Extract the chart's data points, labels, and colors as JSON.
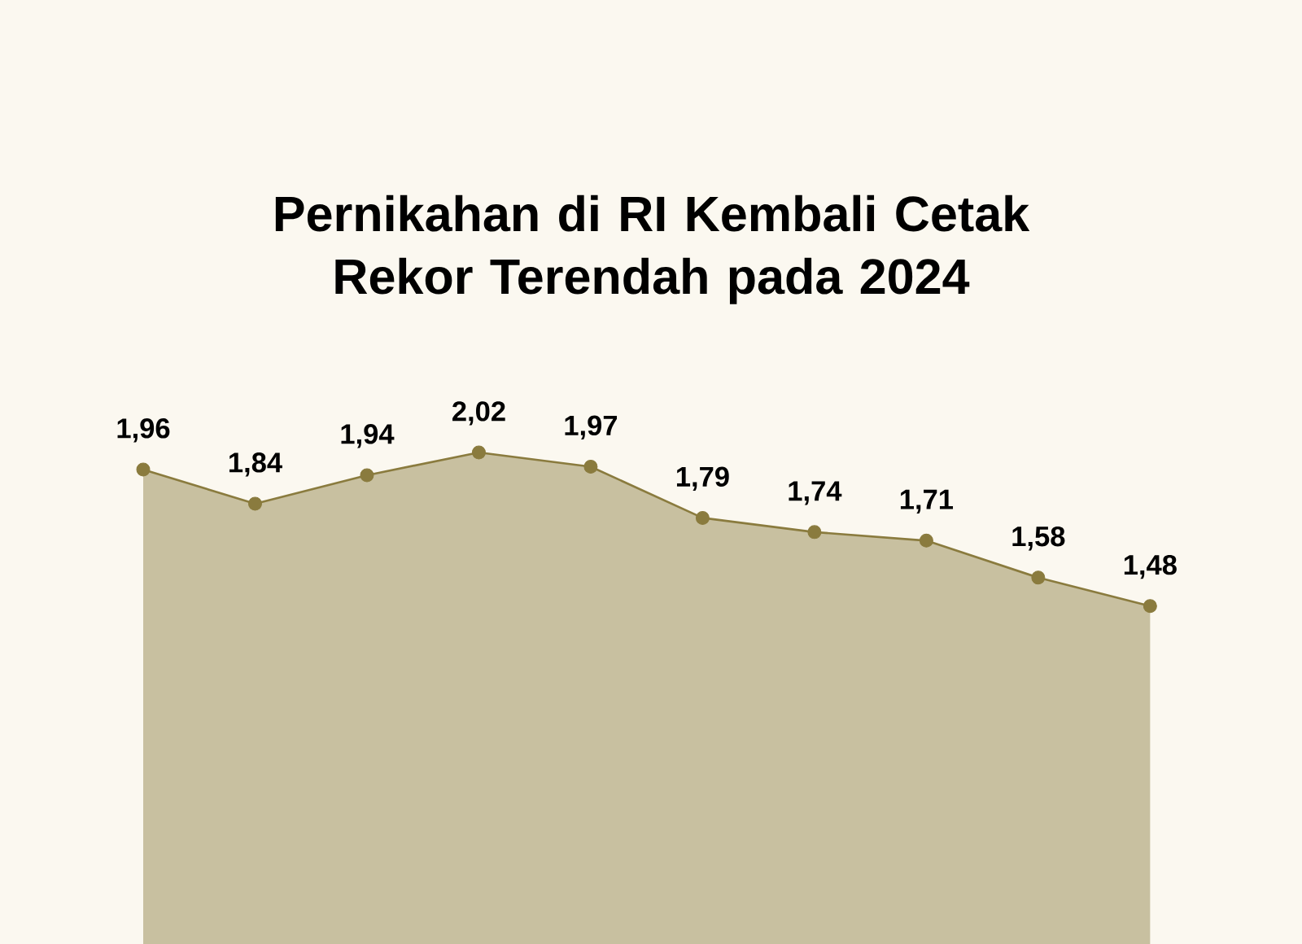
{
  "chart_data": {
    "type": "area",
    "title": "Pernikahan di RI Kembali Cetak Rekor Terendah pada 2024",
    "categories": [
      null,
      null,
      null,
      null,
      null,
      null,
      null,
      null,
      null,
      null
    ],
    "values": [
      1.96,
      1.84,
      1.94,
      2.02,
      1.97,
      1.79,
      1.74,
      1.71,
      1.58,
      1.48
    ],
    "value_labels": [
      "1,96",
      "1,84",
      "1,94",
      "2,02",
      "1,97",
      "1,79",
      "1,74",
      "1,71",
      "1,58",
      "1,48"
    ],
    "color": "#8a7b3e",
    "marker": "circle"
  }
}
